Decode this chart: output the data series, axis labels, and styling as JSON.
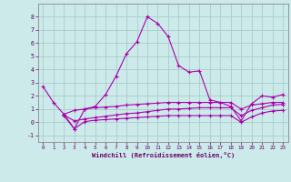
{
  "xlabel": "Windchill (Refroidissement éolien,°C)",
  "background_color": "#cceaea",
  "grid_color": "#aacccc",
  "line_color": "#aa00aa",
  "xlim": [
    -0.5,
    23.5
  ],
  "ylim": [
    -1.5,
    9.0
  ],
  "yticks": [
    -1,
    0,
    1,
    2,
    3,
    4,
    5,
    6,
    7,
    8
  ],
  "xticks": [
    0,
    1,
    2,
    3,
    4,
    5,
    6,
    7,
    8,
    9,
    10,
    11,
    12,
    13,
    14,
    15,
    16,
    17,
    18,
    19,
    20,
    21,
    22,
    23
  ],
  "lines": [
    {
      "x": [
        0,
        1,
        2,
        3,
        4,
        5,
        6,
        7,
        8,
        9,
        10,
        11,
        12,
        13,
        14,
        15,
        16,
        17,
        18,
        19,
        20,
        21,
        22,
        23
      ],
      "y": [
        2.7,
        1.5,
        0.6,
        -0.5,
        1.0,
        1.2,
        2.1,
        3.5,
        5.2,
        6.1,
        8.0,
        7.5,
        6.5,
        4.3,
        3.8,
        3.9,
        1.7,
        1.5,
        1.2,
        0.1,
        1.4,
        2.0,
        1.9,
        2.1
      ]
    },
    {
      "x": [
        2,
        3,
        4,
        5,
        6,
        7,
        8,
        9,
        10,
        11,
        12,
        13,
        14,
        15,
        16,
        17,
        18,
        19,
        20,
        21,
        22,
        23
      ],
      "y": [
        0.6,
        0.9,
        1.0,
        1.1,
        1.15,
        1.2,
        1.3,
        1.35,
        1.4,
        1.45,
        1.5,
        1.5,
        1.5,
        1.5,
        1.5,
        1.5,
        1.5,
        1.0,
        1.3,
        1.4,
        1.5,
        1.5
      ]
    },
    {
      "x": [
        2,
        3,
        4,
        5,
        6,
        7,
        8,
        9,
        10,
        11,
        12,
        13,
        14,
        15,
        16,
        17,
        18,
        19,
        20,
        21,
        22,
        23
      ],
      "y": [
        0.55,
        0.1,
        0.25,
        0.35,
        0.45,
        0.55,
        0.65,
        0.7,
        0.8,
        0.9,
        1.0,
        1.0,
        1.05,
        1.1,
        1.1,
        1.1,
        1.1,
        0.5,
        0.9,
        1.1,
        1.3,
        1.35
      ]
    },
    {
      "x": [
        2,
        3,
        4,
        5,
        6,
        7,
        8,
        9,
        10,
        11,
        12,
        13,
        14,
        15,
        16,
        17,
        18,
        19,
        20,
        21,
        22,
        23
      ],
      "y": [
        0.5,
        -0.5,
        0.05,
        0.15,
        0.2,
        0.25,
        0.3,
        0.35,
        0.4,
        0.45,
        0.5,
        0.5,
        0.5,
        0.5,
        0.5,
        0.5,
        0.5,
        0.0,
        0.4,
        0.7,
        0.85,
        0.9
      ]
    }
  ]
}
